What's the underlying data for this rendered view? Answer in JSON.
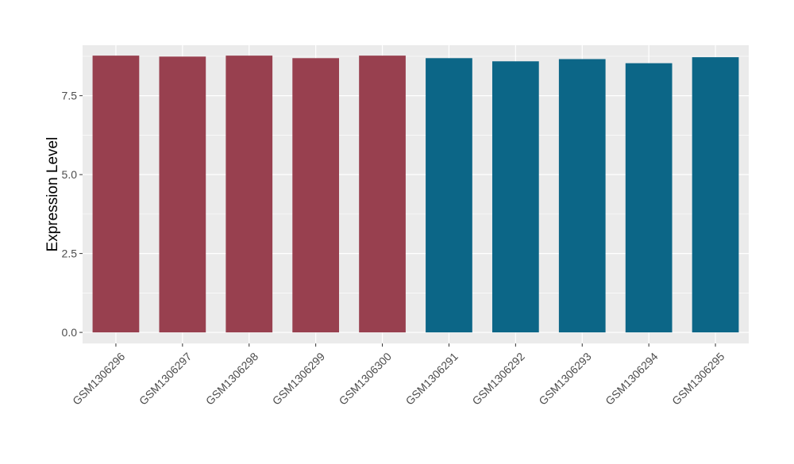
{
  "chart_data": {
    "type": "bar",
    "title": "",
    "xlabel": "",
    "ylabel": "Expression Level",
    "ylim": [
      -0.35,
      9.1
    ],
    "yticks": [
      0.0,
      2.5,
      5.0,
      7.5
    ],
    "ytick_labels": [
      "0.0",
      "2.5",
      "5.0",
      "7.5"
    ],
    "grid": true,
    "legend": "none",
    "panel_background": "#EBEBEB",
    "grid_color": "#FFFFFF",
    "categories": [
      "GSM1306296",
      "GSM1306297",
      "GSM1306298",
      "GSM1306299",
      "GSM1306300",
      "GSM1306291",
      "GSM1306292",
      "GSM1306293",
      "GSM1306294",
      "GSM1306295"
    ],
    "values": [
      8.77,
      8.74,
      8.77,
      8.69,
      8.77,
      8.69,
      8.59,
      8.66,
      8.53,
      8.72
    ],
    "bar_colors": [
      "#98404F",
      "#98404F",
      "#98404F",
      "#98404F",
      "#98404F",
      "#0C6687",
      "#0C6687",
      "#0C6687",
      "#0C6687",
      "#0C6687"
    ]
  }
}
